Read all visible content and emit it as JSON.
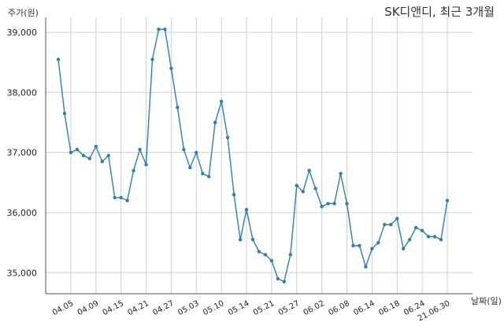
{
  "chart_data": {
    "type": "line",
    "title": "SK디앤디, 최근 3개월",
    "ylabel": "주가(원)",
    "xlabel": "날짜(일)",
    "ylim": [
      34650,
      39250
    ],
    "yticks": [
      35000,
      36000,
      37000,
      38000,
      39000
    ],
    "ytick_labels": [
      "35,000",
      "36,000",
      "37,000",
      "38,000",
      "39,000"
    ],
    "xtick_labels": [
      "04.05",
      "04.09",
      "04.15",
      "04.21",
      "04.27",
      "05.03",
      "05.10",
      "05.14",
      "05.21",
      "05.27",
      "06.02",
      "06.08",
      "06.14",
      "06.18",
      "06.24",
      "21.06.30"
    ],
    "xtick_index": [
      2,
      6,
      10,
      14,
      18,
      22,
      26,
      30,
      34,
      38,
      42,
      46,
      50,
      54,
      58,
      62
    ],
    "grid": true,
    "color": "#2e7fb0",
    "series": [
      {
        "values": [
          38550,
          37650,
          37000,
          37050,
          36950,
          36900,
          37100,
          36850,
          36950,
          36250,
          36250,
          36200,
          36700,
          37050,
          36800,
          38550,
          39050,
          39050,
          38400,
          37750,
          37050,
          36750,
          37000,
          36650,
          36600,
          37500,
          37850,
          37250,
          36300,
          35550,
          36050,
          35550,
          35350,
          35300,
          35200,
          34900,
          34850,
          35300,
          36450,
          36350,
          36700,
          36400,
          36100,
          36150,
          36150,
          36650,
          36150,
          35450,
          35450,
          35100,
          35400,
          35500,
          35800,
          35800,
          35900,
          35400,
          35550,
          35750,
          35700,
          35600,
          35600,
          35550,
          36200
        ]
      }
    ]
  }
}
